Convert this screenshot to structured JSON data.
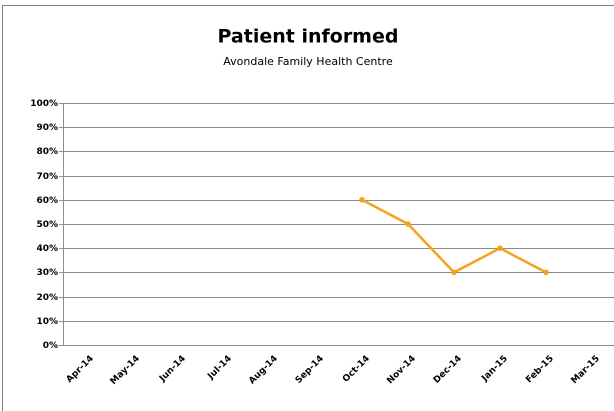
{
  "chart_data": {
    "type": "line",
    "title": "Patient informed",
    "subtitle": "Avondale Family Health Centre",
    "categories": [
      "Apr-14",
      "May-14",
      "Jun-14",
      "Jul-14",
      "Aug-14",
      "Sep-14",
      "Oct-14",
      "Nov-14",
      "Dec-14",
      "Jan-15",
      "Feb-15",
      "Mar-15"
    ],
    "series": [
      {
        "name": "Patient informed",
        "color": "#f5a21c",
        "values": [
          null,
          null,
          null,
          null,
          null,
          null,
          60,
          50,
          30,
          40,
          30,
          null
        ]
      }
    ],
    "ylim": [
      0,
      100
    ],
    "yticks": [
      {
        "value": 0,
        "label": "0%"
      },
      {
        "value": 10,
        "label": "10%"
      },
      {
        "value": 20,
        "label": "20%"
      },
      {
        "value": 30,
        "label": "30%"
      },
      {
        "value": 40,
        "label": "40%"
      },
      {
        "value": 50,
        "label": "50%"
      },
      {
        "value": 60,
        "label": "60%"
      },
      {
        "value": 70,
        "label": "70%"
      },
      {
        "value": 80,
        "label": "80%"
      },
      {
        "value": 90,
        "label": "90%"
      },
      {
        "value": 100,
        "label": "100%"
      }
    ],
    "grid": true
  }
}
